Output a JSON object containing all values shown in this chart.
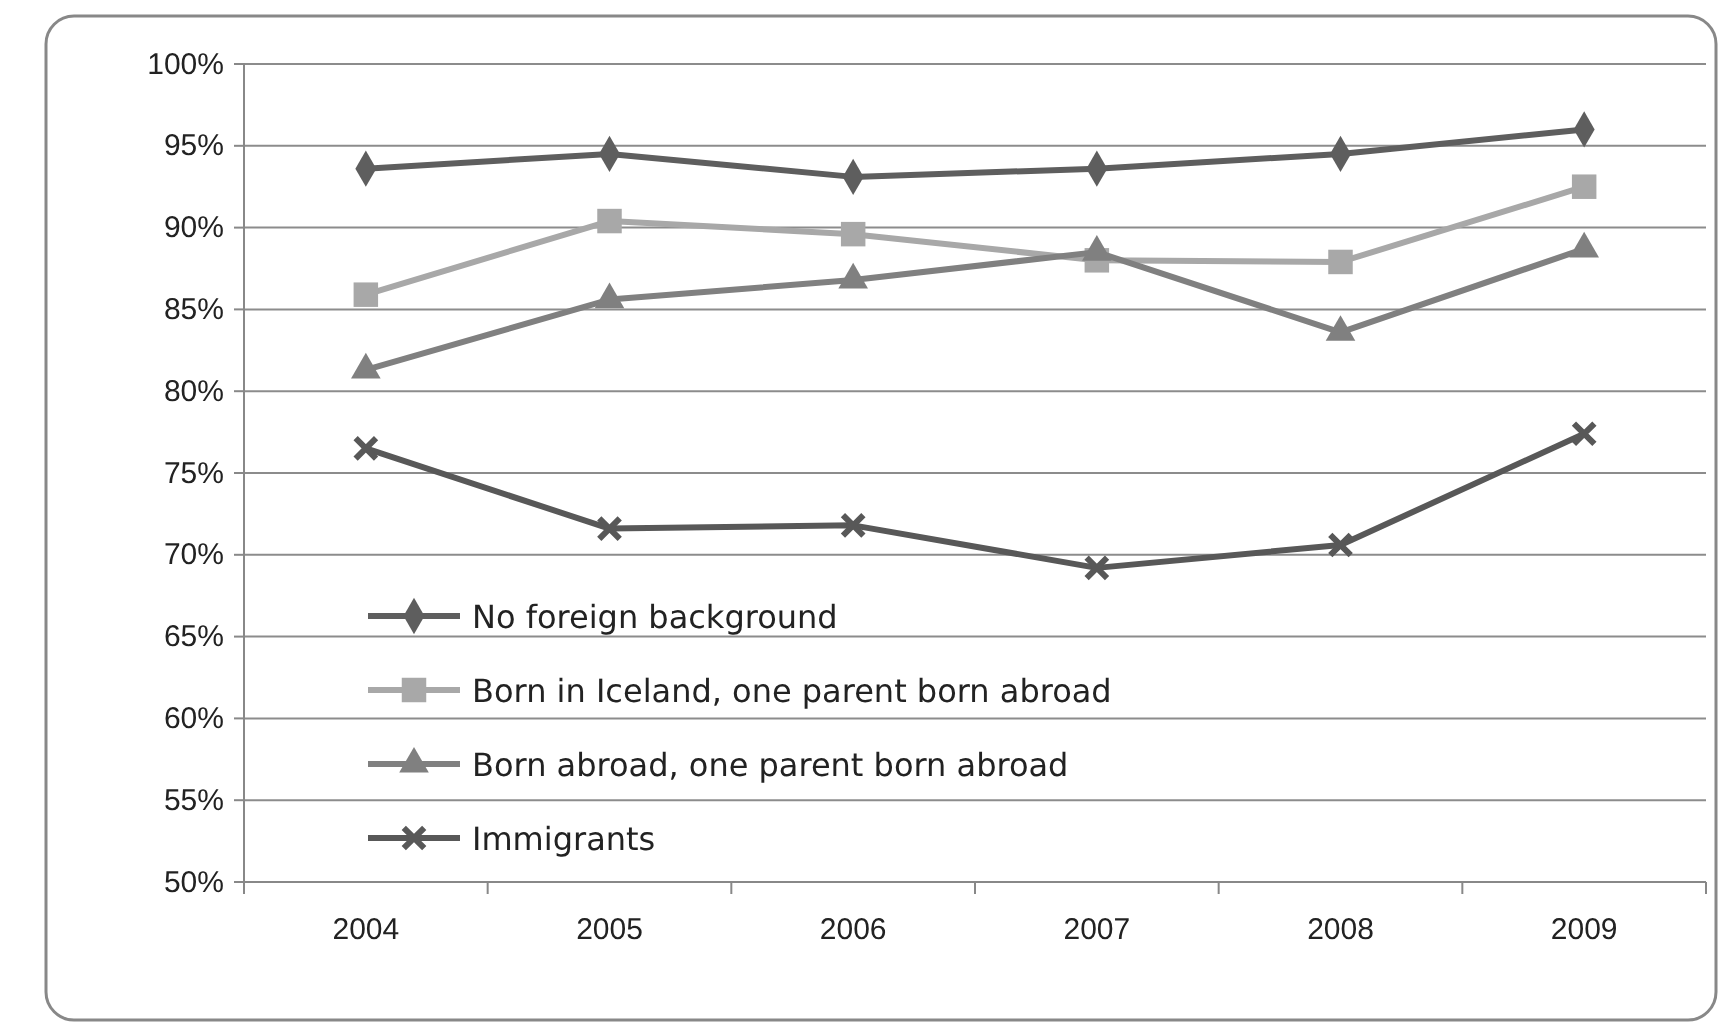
{
  "chart_data": {
    "type": "line",
    "categories": [
      "2004",
      "2005",
      "2006",
      "2007",
      "2008",
      "2009"
    ],
    "series": [
      {
        "name": "No foreign background",
        "color": "#5e5e5e",
        "marker": "diamond",
        "values": [
          93.6,
          94.5,
          93.1,
          93.6,
          94.5,
          96.0
        ]
      },
      {
        "name": "Born in Iceland, one parent born abroad",
        "color": "#a8a8a8",
        "marker": "square",
        "values": [
          85.9,
          90.4,
          89.6,
          88.0,
          87.9,
          92.5
        ]
      },
      {
        "name": "Born abroad, one parent born abroad",
        "color": "#808080",
        "marker": "triangle",
        "values": [
          81.3,
          85.6,
          86.8,
          88.5,
          83.6,
          88.7
        ]
      },
      {
        "name": "Immigrants",
        "color": "#585858",
        "marker": "cross",
        "values": [
          76.5,
          71.6,
          71.8,
          69.2,
          70.6,
          77.4
        ]
      }
    ],
    "ylim": [
      50,
      100
    ],
    "yticks": [
      {
        "value": 50,
        "label": "50%"
      },
      {
        "value": 55,
        "label": "55%"
      },
      {
        "value": 60,
        "label": "60%"
      },
      {
        "value": 65,
        "label": "65%"
      },
      {
        "value": 70,
        "label": "70%"
      },
      {
        "value": 75,
        "label": "75%"
      },
      {
        "value": 80,
        "label": "80%"
      },
      {
        "value": 85,
        "label": "85%"
      },
      {
        "value": 90,
        "label": "90%"
      },
      {
        "value": 95,
        "label": "95%"
      },
      {
        "value": 100,
        "label": "100%"
      }
    ],
    "grid": "y",
    "legend": "bottom left",
    "line_style": "solid"
  }
}
